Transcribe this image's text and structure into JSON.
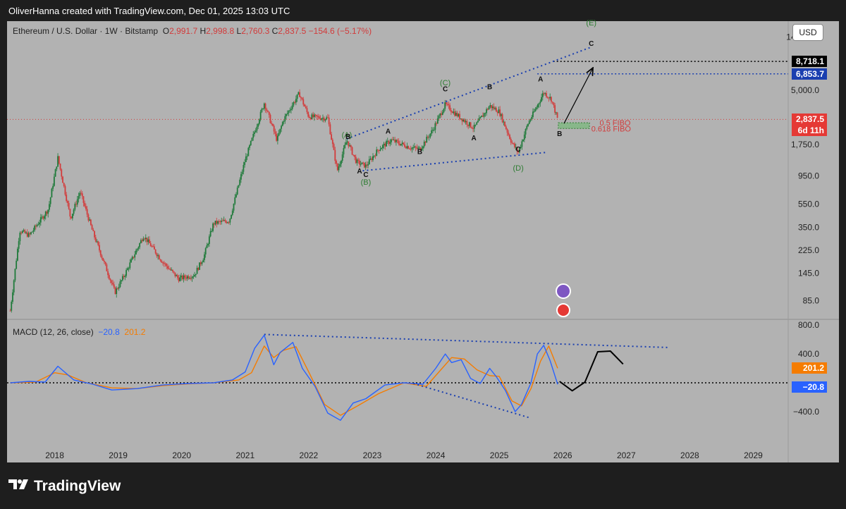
{
  "header": {
    "credit": "OliverHanna created with TradingView.com, Dec 01, 2025 13:03 UTC"
  },
  "legend": {
    "symbol": "Ethereum / U.S. Dollar · 1W · Bitstamp",
    "o_key": "O",
    "o_val": "2,991.7",
    "h_key": "H",
    "h_val": "2,998.8",
    "l_key": "L",
    "l_val": "2,760.3",
    "c_key": "C",
    "c_val": "2,837.5",
    "change": "−154.6 (−5.17%)"
  },
  "currency": "USD",
  "price_tags": {
    "level_upper": "8,718.1",
    "level_lower": "6,853.7",
    "last_price": "2,837.5",
    "countdown": "6d 11h"
  },
  "macd_legend": {
    "label": "MACD (12, 26, close)",
    "macd_value": "−20.8",
    "signal_value": "201.2"
  },
  "macd_tags": {
    "signal": "201.2",
    "macd": "−20.8"
  },
  "annotations": {
    "fibo_05": "0.5 FIBO",
    "fibo_0618": "0.618 FIBO"
  },
  "footer": {
    "brand": "TradingView"
  },
  "colors": {
    "up": "#1f7a3a",
    "down": "#d23b3b",
    "macd_line": "#2962ff",
    "signal_line": "#f57c00",
    "wave_green": "#2e7d32",
    "trendline": "#1a3fb0",
    "last_price_tag": "#e53935",
    "level_upper_tag": "#000000",
    "level_lower_tag": "#1a3fb0"
  },
  "chart_data": [
    {
      "type": "candlestick",
      "title": "Ethereum / U.S. Dollar · 1W · Bitstamp",
      "y_scale": "log",
      "y_ticks": [
        "14,000.0",
        "5,000.0",
        "1,750.0",
        "950.0",
        "550.0",
        "350.0",
        "225.0",
        "145.0",
        "85.0"
      ],
      "y_tick_values": [
        14000,
        5000,
        1750,
        950,
        550,
        350,
        225,
        145,
        85
      ],
      "x_ticks": [
        "2018",
        "2019",
        "2020",
        "2021",
        "2022",
        "2023",
        "2024",
        "2025",
        "2026",
        "2027",
        "2028",
        "2029"
      ],
      "x_tick_values": [
        2018,
        2019,
        2020,
        2021,
        2022,
        2023,
        2024,
        2025,
        2026,
        2027,
        2028,
        2029
      ],
      "xlim": [
        2017.25,
        2029.55
      ],
      "ylim": [
        60,
        19000
      ],
      "price_path": [
        [
          2017.3,
          70
        ],
        [
          2017.45,
          330
        ],
        [
          2017.6,
          300
        ],
        [
          2017.9,
          500
        ],
        [
          2018.05,
          1350
        ],
        [
          2018.25,
          420
        ],
        [
          2018.4,
          700
        ],
        [
          2018.6,
          320
        ],
        [
          2018.95,
          100
        ],
        [
          2019.1,
          140
        ],
        [
          2019.4,
          300
        ],
        [
          2019.7,
          180
        ],
        [
          2019.95,
          130
        ],
        [
          2020.2,
          140
        ],
        [
          2020.35,
          200
        ],
        [
          2020.5,
          380
        ],
        [
          2020.75,
          400
        ],
        [
          2021.0,
          1300
        ],
        [
          2021.3,
          3900
        ],
        [
          2021.5,
          1900
        ],
        [
          2021.6,
          2800
        ],
        [
          2021.85,
          4700
        ],
        [
          2022.0,
          3000
        ],
        [
          2022.3,
          2900
        ],
        [
          2022.45,
          1050
        ],
        [
          2022.6,
          1900
        ],
        [
          2022.75,
          1250
        ],
        [
          2022.9,
          1150
        ],
        [
          2023.1,
          1600
        ],
        [
          2023.3,
          1900
        ],
        [
          2023.6,
          1650
        ],
        [
          2023.75,
          1600
        ],
        [
          2023.95,
          2300
        ],
        [
          2024.15,
          3800
        ],
        [
          2024.3,
          3200
        ],
        [
          2024.6,
          2400
        ],
        [
          2024.85,
          3700
        ],
        [
          2025.0,
          3300
        ],
        [
          2025.2,
          1800
        ],
        [
          2025.3,
          1500
        ],
        [
          2025.45,
          2600
        ],
        [
          2025.6,
          3700
        ],
        [
          2025.7,
          4800
        ],
        [
          2025.82,
          4200
        ],
        [
          2025.92,
          2837.5
        ]
      ],
      "levels": [
        8718.1,
        6853.7,
        2837.5
      ],
      "fibo_zone": [
        2660,
        2380
      ],
      "wave_labels_green": [
        {
          "text": "(A)",
          "x": 2022.6,
          "y": 2000
        },
        {
          "text": "(B)",
          "x": 2022.9,
          "y": 800
        },
        {
          "text": "(C)",
          "x": 2024.15,
          "y": 5500
        },
        {
          "text": "(D)",
          "x": 2025.3,
          "y": 1050
        },
        {
          "text": "(E)",
          "x": 2026.45,
          "y": 17500
        }
      ],
      "wave_labels_black": [
        {
          "text": "B",
          "x": 2022.62,
          "y": 1950
        },
        {
          "text": "A",
          "x": 2022.8,
          "y": 1000
        },
        {
          "text": "C",
          "x": 2022.9,
          "y": 930
        },
        {
          "text": "A",
          "x": 2023.25,
          "y": 2150
        },
        {
          "text": "B",
          "x": 2023.75,
          "y": 1450
        },
        {
          "text": "C",
          "x": 2024.15,
          "y": 4900
        },
        {
          "text": "A",
          "x": 2024.6,
          "y": 1900
        },
        {
          "text": "B",
          "x": 2024.85,
          "y": 5100
        },
        {
          "text": "C",
          "x": 2025.3,
          "y": 1520
        },
        {
          "text": "A",
          "x": 2025.65,
          "y": 5900
        },
        {
          "text": "B",
          "x": 2025.95,
          "y": 2050
        },
        {
          "text": "C",
          "x": 2026.45,
          "y": 11800
        }
      ]
    },
    {
      "type": "line",
      "title": "MACD (12, 26, close)",
      "y_ticks": [
        "800.0",
        "400.0",
        "−400.0"
      ],
      "y_tick_values": [
        800,
        400,
        -400
      ],
      "ylim": [
        -850,
        850
      ],
      "series": [
        {
          "name": "MACD",
          "x": [
            2017.3,
            2017.6,
            2017.85,
            2018.05,
            2018.3,
            2018.6,
            2018.9,
            2019.3,
            2019.7,
            2020.1,
            2020.5,
            2020.8,
            2021.0,
            2021.15,
            2021.3,
            2021.45,
            2021.55,
            2021.75,
            2021.9,
            2022.1,
            2022.3,
            2022.5,
            2022.7,
            2022.9,
            2023.2,
            2023.5,
            2023.8,
            2024.0,
            2024.15,
            2024.25,
            2024.4,
            2024.55,
            2024.7,
            2024.85,
            2024.95,
            2025.1,
            2025.25,
            2025.35,
            2025.5,
            2025.6,
            2025.7,
            2025.8,
            2025.92
          ],
          "values": [
            0,
            20,
            10,
            230,
            40,
            -20,
            -100,
            -80,
            -30,
            -10,
            0,
            40,
            150,
            480,
            660,
            250,
            420,
            560,
            200,
            -50,
            -420,
            -520,
            -280,
            -220,
            -30,
            0,
            -20,
            200,
            400,
            280,
            320,
            60,
            -10,
            200,
            90,
            -110,
            -400,
            -300,
            0,
            400,
            520,
            310,
            -20.8
          ]
        },
        {
          "name": "Signal",
          "x": [
            2017.3,
            2017.7,
            2018.0,
            2018.2,
            2018.5,
            2018.9,
            2019.3,
            2019.7,
            2020.1,
            2020.5,
            2020.9,
            2021.1,
            2021.3,
            2021.45,
            2021.6,
            2021.8,
            2022.0,
            2022.25,
            2022.5,
            2022.75,
            2023.1,
            2023.5,
            2023.85,
            2024.05,
            2024.25,
            2024.45,
            2024.65,
            2024.85,
            2025.0,
            2025.2,
            2025.35,
            2025.5,
            2025.65,
            2025.78,
            2025.92
          ],
          "values": [
            0,
            10,
            140,
            110,
            0,
            -70,
            -80,
            -40,
            -15,
            0,
            40,
            140,
            510,
            350,
            450,
            500,
            150,
            -300,
            -450,
            -330,
            -150,
            0,
            -50,
            150,
            350,
            330,
            180,
            100,
            90,
            -250,
            -320,
            -80,
            300,
            510,
            201.2
          ]
        }
      ],
      "projection": {
        "x": [
          2025.95,
          2026.15,
          2026.35,
          2026.55,
          2026.75,
          2026.95
        ],
        "values": [
          20,
          -110,
          10,
          430,
          440,
          260
        ]
      },
      "zero_line": 0
    }
  ]
}
